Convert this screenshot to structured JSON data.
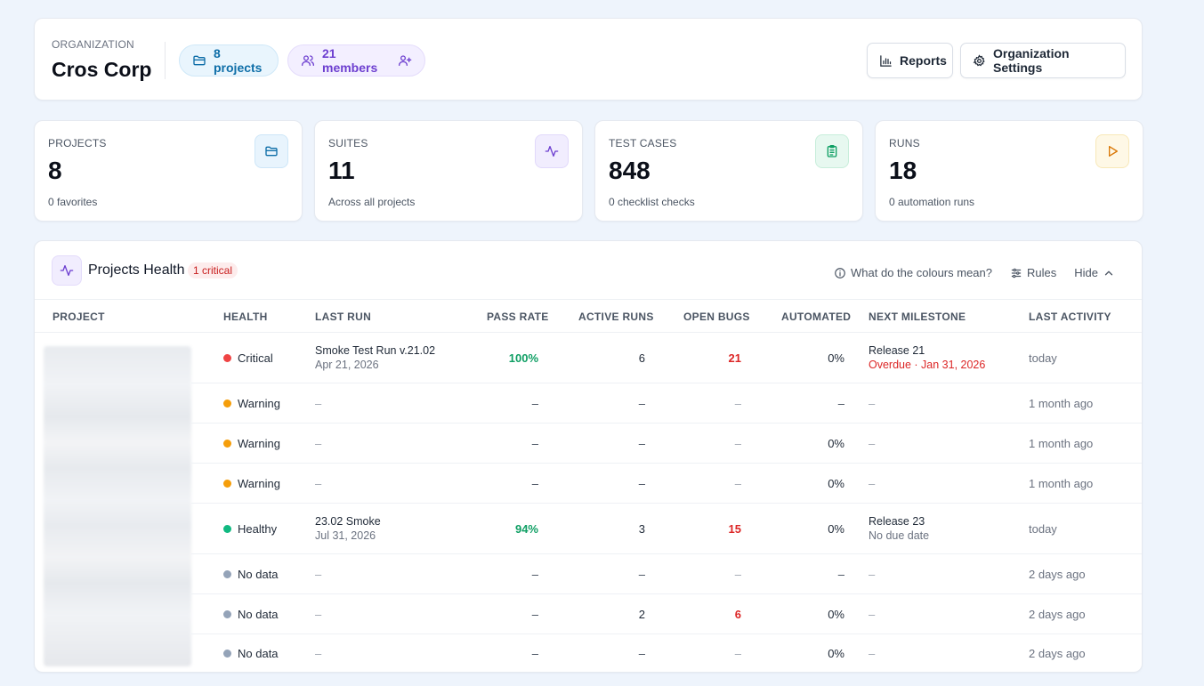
{
  "header": {
    "org_label": "ORGANIZATION",
    "org_name": "Cros Corp",
    "projects_pill": "8 projects",
    "members_pill": "21 members",
    "reports_button": "Reports",
    "settings_button": "Organization Settings"
  },
  "stats": [
    {
      "label": "PROJECTS",
      "value": "8",
      "sub": "0 favorites",
      "icon": "folder-icon",
      "color": "#0e6ea8"
    },
    {
      "label": "SUITES",
      "value": "11",
      "sub": "Across all projects",
      "icon": "activity-icon",
      "color": "#6d3fd0"
    },
    {
      "label": "TEST CASES",
      "value": "848",
      "sub": "0 checklist checks",
      "icon": "clipboard-icon",
      "color": "#0f9f64"
    },
    {
      "label": "RUNS",
      "value": "18",
      "sub": "0 automation runs",
      "icon": "play-icon",
      "color": "#d97706"
    }
  ],
  "health": {
    "title": "Projects Health",
    "badge": "1 critical",
    "colours_link": "What do the colours mean?",
    "rules_button": "Rules",
    "hide_button": "Hide",
    "columns": {
      "project": "PROJECT",
      "health": "HEALTH",
      "last_run": "LAST RUN",
      "pass_rate": "PASS RATE",
      "active_runs": "ACTIVE RUNS",
      "open_bugs": "OPEN BUGS",
      "automated": "AUTOMATED",
      "next_milestone": "NEXT MILESTONE",
      "last_activity": "LAST ACTIVITY"
    },
    "rows": [
      {
        "health": "Critical",
        "health_color": "#ef4444",
        "last_run": "Smoke Test Run v.21.02",
        "last_run_date": "Apr 21, 2026",
        "pass_rate": "100%",
        "active_runs": "6",
        "open_bugs": "21",
        "automated": "0%",
        "milestone": "Release 21",
        "milestone_sub": "Overdue · Jan 31, 2026",
        "last_activity": "today"
      },
      {
        "health": "Warning",
        "health_color": "#f59e0b",
        "last_run": "–",
        "last_run_date": "",
        "pass_rate": "–",
        "active_runs": "–",
        "open_bugs": "–",
        "automated": "–",
        "milestone": "–",
        "milestone_sub": "",
        "last_activity": "1 month ago"
      },
      {
        "health": "Warning",
        "health_color": "#f59e0b",
        "last_run": "–",
        "last_run_date": "",
        "pass_rate": "–",
        "active_runs": "–",
        "open_bugs": "–",
        "automated": "0%",
        "milestone": "–",
        "milestone_sub": "",
        "last_activity": "1 month ago"
      },
      {
        "health": "Warning",
        "health_color": "#f59e0b",
        "last_run": "–",
        "last_run_date": "",
        "pass_rate": "–",
        "active_runs": "–",
        "open_bugs": "–",
        "automated": "0%",
        "milestone": "–",
        "milestone_sub": "",
        "last_activity": "1 month ago"
      },
      {
        "health": "Healthy",
        "health_color": "#10b981",
        "last_run": "23.02 Smoke",
        "last_run_date": "Jul 31, 2026",
        "pass_rate": "94%",
        "active_runs": "3",
        "open_bugs": "15",
        "automated": "0%",
        "milestone": "Release 23",
        "milestone_sub": "No due date",
        "last_activity": "today"
      },
      {
        "health": "No data",
        "health_color": "#94a3b8",
        "last_run": "–",
        "last_run_date": "",
        "pass_rate": "–",
        "active_runs": "–",
        "open_bugs": "–",
        "automated": "–",
        "milestone": "–",
        "milestone_sub": "",
        "last_activity": "2 days ago"
      },
      {
        "health": "No data",
        "health_color": "#94a3b8",
        "last_run": "–",
        "last_run_date": "",
        "pass_rate": "–",
        "active_runs": "2",
        "open_bugs": "6",
        "automated": "0%",
        "milestone": "–",
        "milestone_sub": "",
        "last_activity": "2 days ago"
      },
      {
        "health": "No data",
        "health_color": "#94a3b8",
        "last_run": "–",
        "last_run_date": "",
        "pass_rate": "–",
        "active_runs": "–",
        "open_bugs": "–",
        "automated": "0%",
        "milestone": "–",
        "milestone_sub": "",
        "last_activity": "2 days ago"
      }
    ]
  }
}
